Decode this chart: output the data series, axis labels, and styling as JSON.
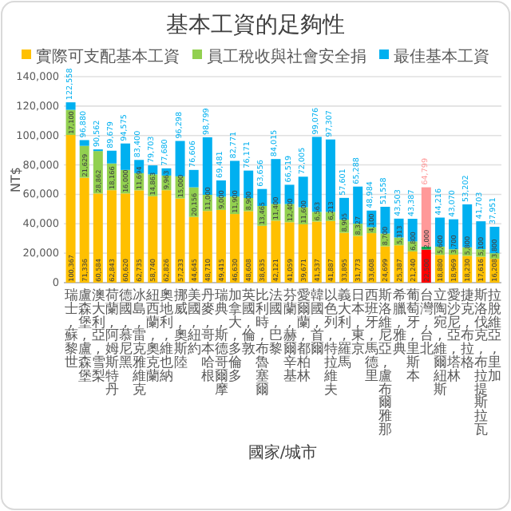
{
  "chart_data": {
    "type": "bar",
    "title": "基本工資的足夠性",
    "xlabel": "國家/城市",
    "ylabel": "NT$",
    "stacked": true,
    "grid": "y",
    "legend": "top",
    "categories": [
      "瑞士, 蘇黎世",
      "盧森堡, 盧森堡",
      "澳大利亞, 雪梨",
      "荷蘭, 阿姆斯特丹",
      "德國, 慕尼黑",
      "冰島, 雷克雅維克",
      "紐西蘭, 奧克蘭",
      "奧地利, 維也納",
      "挪威, 奧斯陸",
      "美國, 紐約",
      "丹麥, 哥本哈根",
      "瑞典, 斯德哥爾摩",
      "加拿大, 多倫多",
      "英國, 倫敦",
      "比利時, 布魯塞爾",
      "法國, 巴黎",
      "芬蘭, 赫爾辛基",
      "愛爾蘭, 都柏林",
      "韓國, 首爾",
      "以色列, 特拉維夫",
      "義大利, 羅馬",
      "日本, 東京",
      "西班牙, 馬德里",
      "斯洛維尼亞, 盧布爾雅那",
      "希臘, 雅典",
      "葡萄牙, 里斯本",
      "台灣, 台北",
      "立陶宛, 維爾紐斯",
      "愛沙尼亞, 塔林",
      "捷克, 布拉格",
      "斯洛伐克, 布拉提斯拉瓦",
      "拉脫維亞, 里加"
    ],
    "ylim": [
      0,
      140000
    ],
    "yticks": [
      0,
      {
        "value": 20000,
        "label": "20,000"
      },
      {
        "value": 40000,
        "label": "40,000"
      },
      {
        "value": 60000,
        "label": "60,000"
      },
      {
        "value": 80000,
        "label": "80,000"
      },
      {
        "value": 100000,
        "label": "100,000"
      },
      {
        "value": 120000,
        "label": "120,000"
      },
      {
        "value": 140000,
        "label": "140,000"
      }
    ],
    "series": [
      {
        "name": "實際可支配基本工資",
        "color": "#ffc000",
        "colors": [
          "#ffc000",
          "#ffc000",
          "#ffc000",
          "#ffc000",
          "#ffc000",
          "#ffc000",
          "#ffc000",
          "#ffc000",
          "#ffc000",
          "#ffc000",
          "#ffc000",
          "#ffc000",
          "#ffc000",
          "#ffc000",
          "#ffc000",
          "#ffc000",
          "#ffc000",
          "#ffc000",
          "#ffc000",
          "#ffc000",
          "#ffc000",
          "#ffc000",
          "#ffc000",
          "#ffc000",
          "#ffc000",
          "#ffc000",
          "#ff0000",
          "#ffc000",
          "#ffc000",
          "#ffc000",
          "#ffc000",
          "#ffc000"
        ],
        "values": [
          100367,
          71336,
          60584,
          62843,
          60620,
          62735,
          58740,
          62826,
          57233,
          44645,
          48710,
          49415,
          46630,
          48608,
          38635,
          42121,
          41059,
          39671,
          41537,
          41887,
          33895,
          31773,
          33608,
          24699,
          25387,
          21240,
          22500,
          18880,
          18969,
          18230,
          17616,
          16208
        ],
        "value_labels": [
          "100,367",
          "71,336",
          "60,584",
          "62,843",
          "60,620",
          "62,735",
          "58,740",
          "62,826",
          "57,233",
          "44,645",
          "48,710",
          "49,415",
          "46,630",
          "48,608",
          "38,635",
          "42,121",
          "41,059",
          "39,671",
          "41,537",
          "41,887",
          "33,895",
          "31,773",
          "33,608",
          "24,699",
          "25,387",
          "21,240",
          "22,500",
          "18,880",
          "18,969",
          "18,230",
          "17,616",
          "16,208"
        ]
      },
      {
        "name": "員工稅收與社會安全捐",
        "color": "#92d050",
        "colors": [
          "#92d050",
          "#92d050",
          "#92d050",
          "#92d050",
          "#92d050",
          "#92d050",
          "#92d050",
          "#92d050",
          "#92d050",
          "#92d050",
          "#92d050",
          "#92d050",
          "#92d050",
          "#92d050",
          "#92d050",
          "#92d050",
          "#92d050",
          "#92d050",
          "#92d050",
          "#92d050",
          "#92d050",
          "#92d050",
          "#92d050",
          "#92d050",
          "#92d050",
          "#92d050",
          "#00b050",
          "#92d050",
          "#92d050",
          "#92d050",
          "#92d050",
          "#92d050"
        ],
        "values": [
          17100,
          21629,
          28862,
          18166,
          16000,
          11694,
          14863,
          9963,
          15000,
          20156,
          11000,
          9000,
          11900,
          8900,
          13465,
          11400,
          12400,
          11600,
          6563,
          6213,
          8905,
          8327,
          4100,
          8700,
          5313,
          6800,
          2000,
          5600,
          3700,
          5800,
          5100,
          3800
        ],
        "value_labels": [
          "17,100",
          "21,629",
          "28,862",
          "18,166",
          "16,000",
          "11,694",
          "14,863",
          "9,963",
          "15,000",
          "20,156",
          "11,000",
          "9,000",
          "11,900",
          "8,900",
          "13,465",
          "11,400",
          "12,400",
          "11,600",
          "6,563",
          "6,213",
          "8,905",
          "8,327",
          "4,100",
          "8,700",
          "5,313",
          "6,800",
          "2,000",
          "5,600",
          "3,700",
          "5,800",
          "5,100",
          "3,800"
        ]
      },
      {
        "name": "最佳基本工資",
        "color": "#00b0f0",
        "colors": [
          "#00b0f0",
          "#00b0f0",
          "#00b0f0",
          "#00b0f0",
          "#00b0f0",
          "#00b0f0",
          "#00b0f0",
          "#00b0f0",
          "#00b0f0",
          "#00b0f0",
          "#00b0f0",
          "#00b0f0",
          "#00b0f0",
          "#00b0f0",
          "#00b0f0",
          "#00b0f0",
          "#00b0f0",
          "#00b0f0",
          "#00b0f0",
          "#00b0f0",
          "#00b0f0",
          "#00b0f0",
          "#00b0f0",
          "#00b0f0",
          "#00b0f0",
          "#00b0f0",
          "#ff9999",
          "#00b0f0",
          "#00b0f0",
          "#00b0f0",
          "#00b0f0",
          "#00b0f0"
        ],
        "values": [
          5091,
          3915,
          1116,
          8670,
          17955,
          8971,
          6100,
          4891,
          24065,
          11805,
          39089,
          11066,
          24241,
          18663,
          11556,
          30494,
          13060,
          20734,
          50976,
          49207,
          14801,
          25188,
          11276,
          18159,
          12803,
          15347,
          40299,
          19736,
          20401,
          29172,
          18987,
          17943
        ]
      }
    ],
    "totals": [
      "122,558",
      "96,880",
      "90,562",
      "89,679",
      "94,575",
      "83,400",
      "79,703",
      "77,680",
      "96,298",
      "76,606",
      "98,799",
      "69,481",
      "82,771",
      "76,171",
      "63,656",
      "84,015",
      "66,519",
      "72,005",
      "99,076",
      "97,307",
      "57,601",
      "65,288",
      "48,984",
      "51,558",
      "43,503",
      "43,387",
      "64,799",
      "44,216",
      "43,070",
      "53,202",
      "41,703",
      "37,951"
    ]
  }
}
